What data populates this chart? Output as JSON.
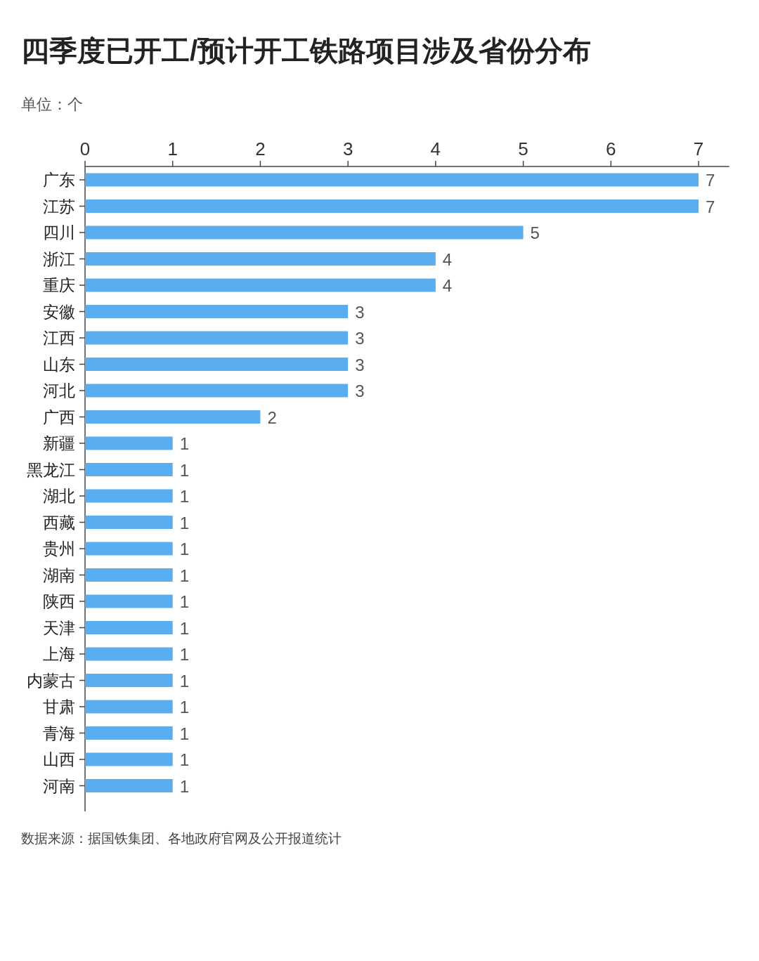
{
  "chart_data": {
    "type": "bar",
    "orientation": "horizontal",
    "title": "四季度已开工/预计开工铁路项目涉及省份分布",
    "subtitle": "单位：个",
    "categories": [
      "广东",
      "江苏",
      "四川",
      "浙江",
      "重庆",
      "安徽",
      "江西",
      "山东",
      "河北",
      "广西",
      "新疆",
      "黑龙江",
      "湖北",
      "西藏",
      "贵州",
      "湖南",
      "陕西",
      "天津",
      "上海",
      "内蒙古",
      "甘肃",
      "青海",
      "山西",
      "河南"
    ],
    "values": [
      7,
      7,
      5,
      4,
      4,
      3,
      3,
      3,
      3,
      2,
      1,
      1,
      1,
      1,
      1,
      1,
      1,
      1,
      1,
      1,
      1,
      1,
      1,
      1
    ],
    "color": "#5aaef0",
    "xlim": [
      0,
      7.35
    ],
    "xticks": [
      0,
      1,
      2,
      3,
      4,
      5,
      6,
      7
    ],
    "data_labels": true,
    "grid": false,
    "annotations": [
      "数据来源：据国铁集团、各地政府官网及公开报道统计"
    ]
  }
}
